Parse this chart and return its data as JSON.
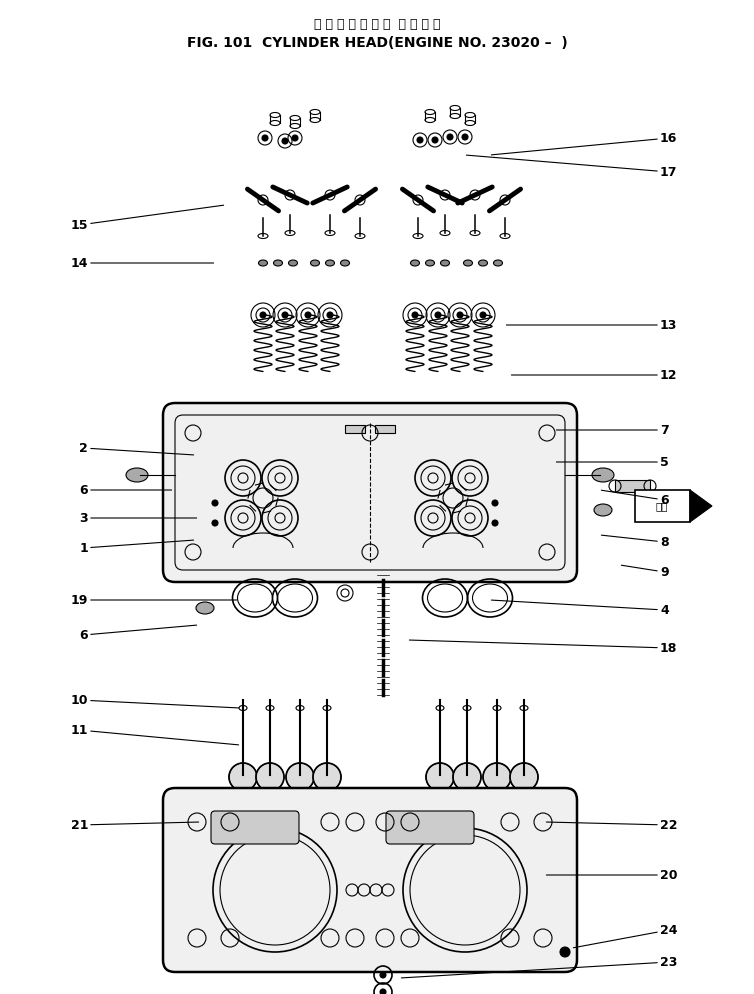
{
  "title_japanese": "シ リ ン ダ ヘ ッ ド  通 用 号 機",
  "title_english": "FIG. 101  CYLINDER HEAD(ENGINE NO. 23020 –  )",
  "bg_color": "#ffffff",
  "line_color": "#000000",
  "figsize": [
    7.54,
    9.94
  ],
  "dpi": 100,
  "arrow_box_text": "前方",
  "label_fontsize": 9,
  "title_fontsize_jp": 9,
  "title_fontsize_en": 10
}
